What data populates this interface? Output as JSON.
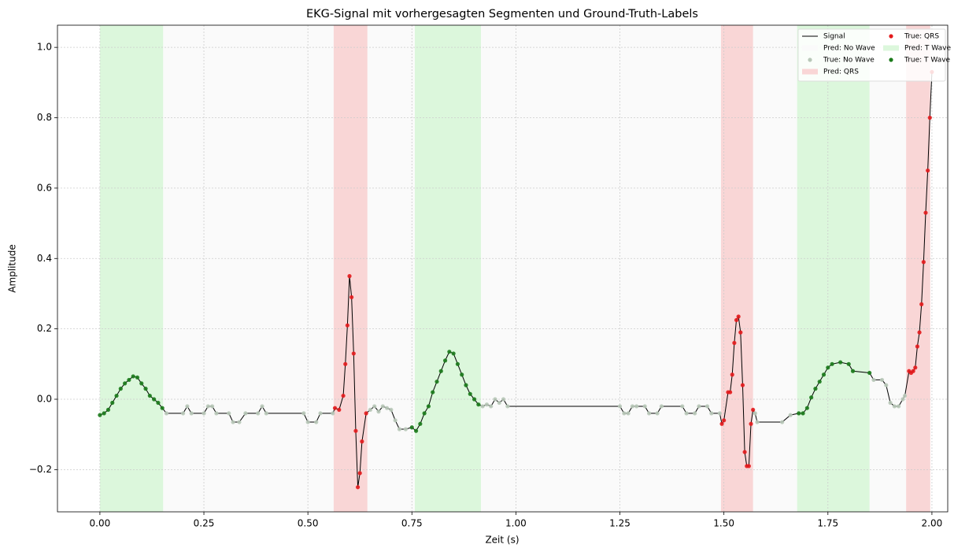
{
  "chart_data": {
    "type": "line",
    "title": "EKG-Signal mit vorhergesagten Segmenten und Ground-Truth-Labels",
    "xlabel": "Zeit (s)",
    "ylabel": "Amplitude",
    "xlim": [
      -0.102,
      2.038
    ],
    "ylim": [
      -0.32,
      1.063
    ],
    "xticks": [
      {
        "value": 0,
        "label": "0.00"
      },
      {
        "value": 0.25,
        "label": "0.25"
      },
      {
        "value": 0.5,
        "label": "0.50"
      },
      {
        "value": 0.75,
        "label": "0.75"
      },
      {
        "value": 1,
        "label": "1.00"
      },
      {
        "value": 1.25,
        "label": "1.25"
      },
      {
        "value": 1.5,
        "label": "1.50"
      },
      {
        "value": 1.75,
        "label": "1.75"
      },
      {
        "value": 2,
        "label": "2.00"
      }
    ],
    "yticks": [
      {
        "value": -0.2,
        "label": "−0.2"
      },
      {
        "value": 0,
        "label": "0.0"
      },
      {
        "value": 0.2,
        "label": "0.2"
      },
      {
        "value": 0.4,
        "label": "0.4"
      },
      {
        "value": 0.6,
        "label": "0.6"
      },
      {
        "value": 0.8,
        "label": "0.8"
      },
      {
        "value": 1,
        "label": "1.0"
      }
    ],
    "grid": true,
    "legend": "upper right",
    "spans": [
      {
        "name": "Pred: No Wave",
        "color": "#fafafa",
        "ranges": [
          [
            0.152,
            0.562
          ],
          [
            0.643,
            0.757
          ],
          [
            0.916,
            1.493
          ],
          [
            1.57,
            1.676
          ],
          [
            1.85,
            1.938
          ]
        ]
      },
      {
        "name": "Pred: QRS",
        "color": "#f9d6d6",
        "ranges": [
          [
            0.562,
            0.643
          ],
          [
            1.493,
            1.57
          ],
          [
            1.938,
            1.996
          ]
        ]
      },
      {
        "name": "Pred: T Wave",
        "color": "#dcf7dc",
        "ranges": [
          [
            0,
            0.152
          ],
          [
            0.757,
            0.916
          ],
          [
            1.676,
            1.85
          ]
        ]
      }
    ],
    "series": [
      {
        "name": "Signal",
        "color": "#000000",
        "x": [
          0,
          0.01,
          0.02,
          0.03,
          0.04,
          0.05,
          0.06,
          0.07,
          0.08,
          0.09,
          0.1,
          0.11,
          0.12,
          0.13,
          0.14,
          0.15,
          0.16,
          0.2,
          0.21,
          0.22,
          0.25,
          0.26,
          0.27,
          0.28,
          0.31,
          0.32,
          0.335,
          0.35,
          0.38,
          0.39,
          0.4,
          0.49,
          0.5,
          0.52,
          0.53,
          0.56,
          0.565,
          0.575,
          0.585,
          0.59,
          0.595,
          0.6,
          0.605,
          0.61,
          0.615,
          0.62,
          0.625,
          0.63,
          0.64,
          0.65,
          0.66,
          0.67,
          0.68,
          0.69,
          0.7,
          0.71,
          0.72,
          0.735,
          0.75,
          0.76,
          0.77,
          0.78,
          0.79,
          0.8,
          0.81,
          0.82,
          0.83,
          0.84,
          0.85,
          0.86,
          0.87,
          0.88,
          0.89,
          0.9,
          0.91,
          0.92,
          0.93,
          0.94,
          0.95,
          0.96,
          0.97,
          0.98,
          1.25,
          1.26,
          1.27,
          1.28,
          1.29,
          1.31,
          1.32,
          1.34,
          1.35,
          1.4,
          1.41,
          1.43,
          1.44,
          1.46,
          1.47,
          1.49,
          1.495,
          1.5,
          1.51,
          1.515,
          1.52,
          1.525,
          1.53,
          1.535,
          1.54,
          1.545,
          1.55,
          1.555,
          1.56,
          1.565,
          1.57,
          1.575,
          1.58,
          1.64,
          1.66,
          1.68,
          1.69,
          1.7,
          1.71,
          1.72,
          1.73,
          1.74,
          1.75,
          1.76,
          1.78,
          1.8,
          1.81,
          1.85,
          1.86,
          1.88,
          1.89,
          1.9,
          1.91,
          1.92,
          1.93,
          1.935,
          1.945,
          1.95,
          1.955,
          1.96,
          1.965,
          1.97,
          1.975,
          1.98,
          1.985,
          1.99,
          1.995,
          2.0
        ],
        "values": [
          -0.045,
          -0.04,
          -0.03,
          -0.01,
          0.01,
          0.03,
          0.045,
          0.055,
          0.065,
          0.062,
          0.045,
          0.03,
          0.01,
          0.0,
          -0.01,
          -0.025,
          -0.04,
          -0.04,
          -0.02,
          -0.04,
          -0.04,
          -0.02,
          -0.02,
          -0.04,
          -0.04,
          -0.065,
          -0.065,
          -0.04,
          -0.04,
          -0.02,
          -0.04,
          -0.04,
          -0.065,
          -0.065,
          -0.04,
          -0.04,
          -0.025,
          -0.03,
          0.01,
          0.1,
          0.21,
          0.35,
          0.29,
          0.13,
          -0.09,
          -0.25,
          -0.21,
          -0.12,
          -0.04,
          -0.03,
          -0.02,
          -0.035,
          -0.02,
          -0.025,
          -0.03,
          -0.06,
          -0.085,
          -0.085,
          -0.08,
          -0.09,
          -0.07,
          -0.04,
          -0.02,
          0.02,
          0.05,
          0.08,
          0.11,
          0.135,
          0.13,
          0.1,
          0.07,
          0.04,
          0.015,
          0.0,
          -0.015,
          -0.02,
          -0.015,
          -0.02,
          0.0,
          -0.01,
          0.0,
          -0.02,
          -0.02,
          -0.04,
          -0.04,
          -0.02,
          -0.02,
          -0.02,
          -0.04,
          -0.04,
          -0.02,
          -0.02,
          -0.04,
          -0.04,
          -0.02,
          -0.02,
          -0.04,
          -0.04,
          -0.07,
          -0.06,
          0.02,
          0.02,
          0.07,
          0.16,
          0.225,
          0.235,
          0.19,
          0.04,
          -0.15,
          -0.19,
          -0.19,
          -0.07,
          -0.03,
          -0.04,
          -0.065,
          -0.065,
          -0.045,
          -0.04,
          -0.04,
          -0.025,
          0.005,
          0.03,
          0.05,
          0.07,
          0.09,
          0.1,
          0.105,
          0.1,
          0.08,
          0.075,
          0.055,
          0.055,
          0.04,
          -0.01,
          -0.02,
          -0.02,
          0.0,
          0.01,
          0.08,
          0.075,
          0.08,
          0.09,
          0.15,
          0.19,
          0.27,
          0.39,
          0.53,
          0.65,
          0.8,
          0.93
        ]
      },
      {
        "name": "True: No Wave",
        "color": "#b8c8b8",
        "kind": "scatter",
        "x": [
          0.16,
          0.2,
          0.21,
          0.22,
          0.25,
          0.26,
          0.27,
          0.28,
          0.31,
          0.32,
          0.335,
          0.35,
          0.38,
          0.39,
          0.4,
          0.49,
          0.5,
          0.52,
          0.53,
          0.56,
          0.65,
          0.66,
          0.67,
          0.68,
          0.69,
          0.7,
          0.71,
          0.72,
          0.735,
          0.92,
          0.93,
          0.94,
          0.95,
          0.96,
          0.97,
          0.98,
          1.25,
          1.26,
          1.27,
          1.28,
          1.29,
          1.31,
          1.32,
          1.34,
          1.35,
          1.4,
          1.41,
          1.43,
          1.44,
          1.46,
          1.47,
          1.49,
          1.575,
          1.58,
          1.64,
          1.66,
          1.86,
          1.88,
          1.89,
          1.9,
          1.91,
          1.92,
          1.93,
          1.935
        ],
        "values": [
          -0.04,
          -0.04,
          -0.02,
          -0.04,
          -0.04,
          -0.02,
          -0.02,
          -0.04,
          -0.04,
          -0.065,
          -0.065,
          -0.04,
          -0.04,
          -0.02,
          -0.04,
          -0.04,
          -0.065,
          -0.065,
          -0.04,
          -0.04,
          -0.03,
          -0.02,
          -0.035,
          -0.02,
          -0.025,
          -0.03,
          -0.06,
          -0.085,
          -0.085,
          -0.02,
          -0.015,
          -0.02,
          0.0,
          -0.01,
          0.0,
          -0.02,
          -0.02,
          -0.04,
          -0.04,
          -0.02,
          -0.02,
          -0.02,
          -0.04,
          -0.04,
          -0.02,
          -0.02,
          -0.04,
          -0.04,
          -0.02,
          -0.02,
          -0.04,
          -0.04,
          -0.04,
          -0.065,
          -0.065,
          -0.045,
          0.055,
          0.055,
          0.04,
          -0.01,
          -0.02,
          -0.02,
          0.0,
          0.01
        ]
      },
      {
        "name": "True: QRS",
        "color": "#e41a1c",
        "kind": "scatter",
        "x": [
          0.565,
          0.575,
          0.585,
          0.59,
          0.595,
          0.6,
          0.605,
          0.61,
          0.615,
          0.62,
          0.625,
          0.63,
          0.64,
          1.495,
          1.5,
          1.51,
          1.515,
          1.52,
          1.525,
          1.53,
          1.535,
          1.54,
          1.545,
          1.55,
          1.555,
          1.56,
          1.565,
          1.57,
          1.945,
          1.95,
          1.955,
          1.96,
          1.965,
          1.97,
          1.975,
          1.98,
          1.985,
          1.99,
          1.995,
          2.0
        ],
        "values": [
          -0.025,
          -0.03,
          0.01,
          0.1,
          0.21,
          0.35,
          0.29,
          0.13,
          -0.09,
          -0.25,
          -0.21,
          -0.12,
          -0.04,
          -0.07,
          -0.06,
          0.02,
          0.02,
          0.07,
          0.16,
          0.225,
          0.235,
          0.19,
          0.04,
          -0.15,
          -0.19,
          -0.19,
          -0.07,
          -0.03,
          0.08,
          0.075,
          0.08,
          0.09,
          0.15,
          0.19,
          0.27,
          0.39,
          0.53,
          0.65,
          0.8,
          0.93
        ]
      },
      {
        "name": "True: T Wave",
        "color": "#1a7a1a",
        "kind": "scatter",
        "x": [
          0,
          0.01,
          0.02,
          0.03,
          0.04,
          0.05,
          0.06,
          0.07,
          0.08,
          0.09,
          0.1,
          0.11,
          0.12,
          0.13,
          0.14,
          0.15,
          0.75,
          0.76,
          0.77,
          0.78,
          0.79,
          0.8,
          0.81,
          0.82,
          0.83,
          0.84,
          0.85,
          0.86,
          0.87,
          0.88,
          0.89,
          0.9,
          0.91,
          1.68,
          1.69,
          1.7,
          1.71,
          1.72,
          1.73,
          1.74,
          1.75,
          1.76,
          1.78,
          1.8,
          1.81,
          1.85
        ],
        "values": [
          -0.045,
          -0.04,
          -0.03,
          -0.01,
          0.01,
          0.03,
          0.045,
          0.055,
          0.065,
          0.062,
          0.045,
          0.03,
          0.01,
          0.0,
          -0.01,
          -0.025,
          -0.08,
          -0.09,
          -0.07,
          -0.04,
          -0.02,
          0.02,
          0.05,
          0.08,
          0.11,
          0.135,
          0.13,
          0.1,
          0.07,
          0.04,
          0.015,
          0.0,
          -0.015,
          -0.04,
          -0.04,
          -0.025,
          0.005,
          0.03,
          0.05,
          0.07,
          0.09,
          0.1,
          0.105,
          0.1,
          0.08,
          0.075
        ]
      }
    ]
  }
}
